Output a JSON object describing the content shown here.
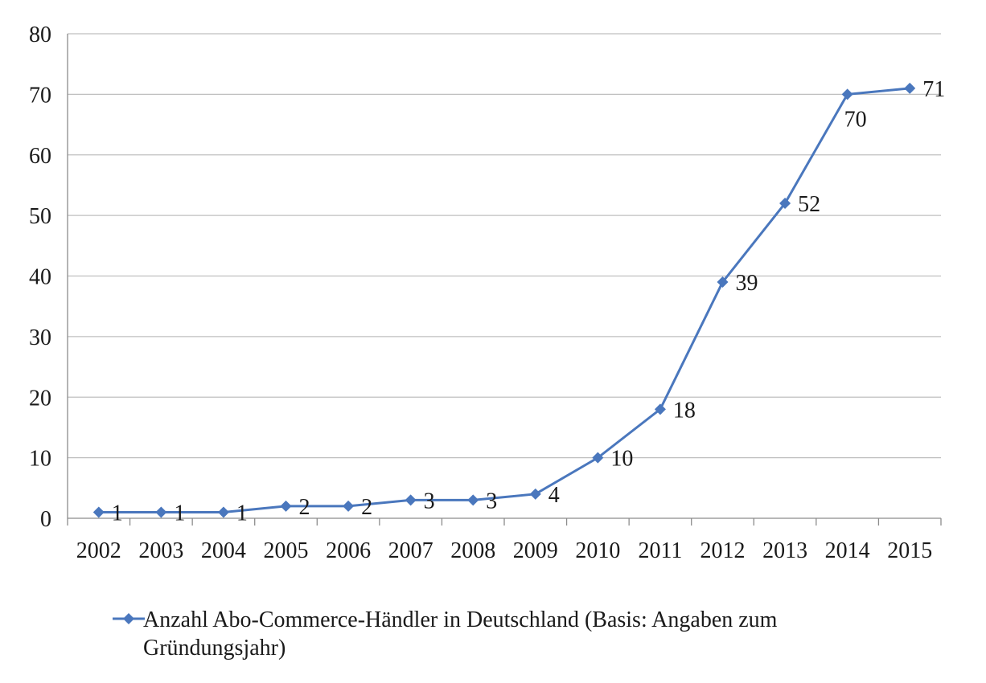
{
  "chart_data": {
    "type": "line",
    "categories": [
      "2002",
      "2003",
      "2004",
      "2005",
      "2006",
      "2007",
      "2008",
      "2009",
      "2010",
      "2011",
      "2012",
      "2013",
      "2014",
      "2015"
    ],
    "series": [
      {
        "name": "Anzahl Abo-Commerce-Händler in Deutschland (Basis: Angaben zum Gründungsjahr)",
        "values": [
          1,
          1,
          1,
          2,
          2,
          3,
          3,
          4,
          10,
          18,
          39,
          52,
          70,
          71
        ],
        "color": "#4a77bd",
        "marker": "diamond",
        "data_labels": true
      }
    ],
    "title": "",
    "xlabel": "",
    "ylabel": "",
    "ylim": [
      0,
      80
    ],
    "yticks": [
      0,
      10,
      20,
      30,
      40,
      50,
      60,
      70,
      80
    ],
    "grid": true,
    "legend": {
      "placement": "bottom",
      "lines": [
        "Anzahl Abo-Commerce-Händler in Deutschland (Basis: Angaben zum",
        "Gründungsjahr)"
      ]
    }
  }
}
